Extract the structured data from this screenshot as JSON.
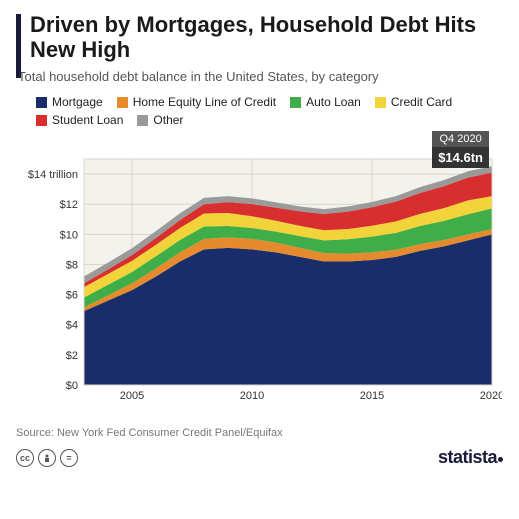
{
  "title": "Driven by Mortgages, Household Debt Hits New High",
  "subtitle": "Total household debt balance in the United States, by category",
  "legend": [
    {
      "label": "Mortgage",
      "color": "#1a2d6b"
    },
    {
      "label": "Home Equity Line of Credit",
      "color": "#e68a2e"
    },
    {
      "label": "Auto Loan",
      "color": "#3fae49"
    },
    {
      "label": "Credit Card",
      "color": "#f2d43a"
    },
    {
      "label": "Student Loan",
      "color": "#d92e2e"
    },
    {
      "label": "Other",
      "color": "#9a9a9a"
    }
  ],
  "callout": {
    "period": "Q4 2020",
    "value": "$14.6tn"
  },
  "chart": {
    "type": "stacked-area",
    "background": "#f3f2ec",
    "grid_color": "#d8d6cc",
    "accent_color": "#1a1a3a",
    "title_fontsize": 22,
    "label_fontsize": 11,
    "ylim": [
      0,
      15
    ],
    "yticks": [
      0,
      2,
      4,
      6,
      8,
      10,
      12,
      14
    ],
    "ytick_labels": [
      "$0",
      "$2",
      "$4",
      "$6",
      "$8",
      "$10",
      "$12",
      "$14 trillion"
    ],
    "xlim": [
      2003,
      2020
    ],
    "xticks": [
      2005,
      2010,
      2015,
      2020
    ],
    "years": [
      2003,
      2004,
      2005,
      2006,
      2007,
      2008,
      2009,
      2010,
      2011,
      2012,
      2013,
      2014,
      2015,
      2016,
      2017,
      2018,
      2019,
      2020
    ],
    "series": [
      {
        "name": "Mortgage",
        "color": "#1a2d6b",
        "values": [
          4.9,
          5.6,
          6.3,
          7.2,
          8.2,
          9.0,
          9.1,
          9.0,
          8.8,
          8.5,
          8.2,
          8.2,
          8.3,
          8.5,
          8.9,
          9.2,
          9.6,
          10.0
        ]
      },
      {
        "name": "Home Equity Line of Credit",
        "color": "#e68a2e",
        "values": [
          0.25,
          0.35,
          0.45,
          0.55,
          0.6,
          0.7,
          0.7,
          0.7,
          0.65,
          0.6,
          0.55,
          0.52,
          0.5,
          0.48,
          0.45,
          0.42,
          0.4,
          0.35
        ]
      },
      {
        "name": "Auto Loan",
        "color": "#3fae49",
        "values": [
          0.65,
          0.7,
          0.75,
          0.8,
          0.82,
          0.82,
          0.75,
          0.72,
          0.73,
          0.78,
          0.85,
          0.95,
          1.05,
          1.12,
          1.2,
          1.27,
          1.33,
          1.37
        ]
      },
      {
        "name": "Credit Card",
        "color": "#f2d43a",
        "values": [
          0.7,
          0.72,
          0.74,
          0.76,
          0.8,
          0.86,
          0.87,
          0.78,
          0.72,
          0.68,
          0.67,
          0.68,
          0.72,
          0.76,
          0.81,
          0.85,
          0.92,
          0.82
        ]
      },
      {
        "name": "Student Loan",
        "color": "#d92e2e",
        "values": [
          0.25,
          0.3,
          0.38,
          0.45,
          0.53,
          0.62,
          0.72,
          0.81,
          0.87,
          0.96,
          1.08,
          1.16,
          1.23,
          1.31,
          1.38,
          1.46,
          1.51,
          1.56
        ]
      },
      {
        "name": "Other",
        "color": "#9a9a9a",
        "values": [
          0.45,
          0.45,
          0.46,
          0.46,
          0.45,
          0.42,
          0.4,
          0.38,
          0.35,
          0.33,
          0.32,
          0.34,
          0.35,
          0.37,
          0.39,
          0.41,
          0.43,
          0.42
        ]
      }
    ]
  },
  "source": "Source: New York Fed Consumer Credit Panel/Equifax",
  "logo": "statista",
  "cc": [
    "cc",
    "by",
    "nd"
  ]
}
